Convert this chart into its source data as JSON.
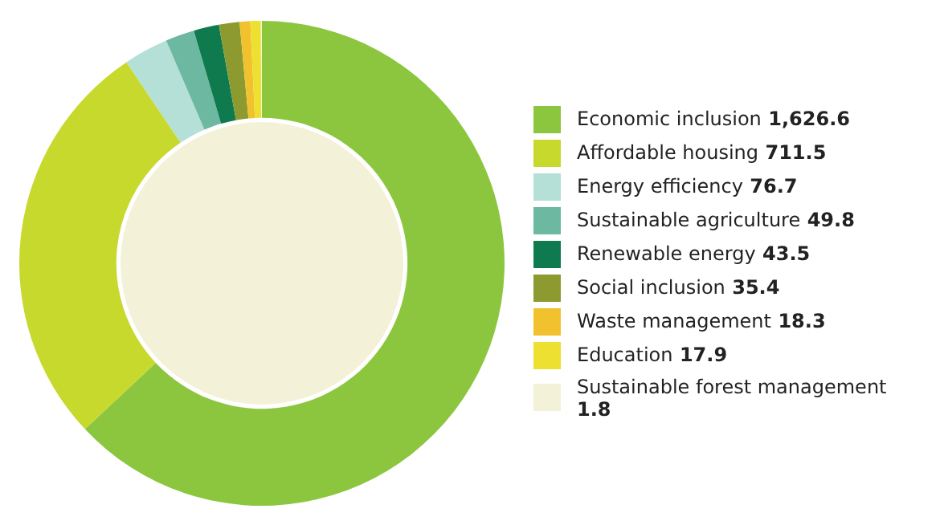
{
  "chart_data": {
    "type": "donut",
    "categories": [
      "Economic inclusion",
      "Affordable housing",
      "Energy efficiency",
      "Sustainable agriculture",
      "Renewable energy",
      "Social inclusion",
      "Waste management",
      "Education",
      "Sustainable forest management"
    ],
    "values": [
      1626.6,
      711.5,
      76.7,
      49.8,
      43.5,
      35.4,
      18.3,
      17.9,
      1.8
    ],
    "value_labels": [
      "1,626.6",
      "711.5",
      "76.7",
      "49.8",
      "43.5",
      "35.4",
      "18.3",
      "17.9",
      "1.8"
    ],
    "colors": [
      "#8cc63f",
      "#c8d92e",
      "#b4e0d8",
      "#6db8a0",
      "#0e7a4e",
      "#8c9a30",
      "#f2c12e",
      "#ede030",
      "#f3f2d8"
    ],
    "legend": "right"
  }
}
